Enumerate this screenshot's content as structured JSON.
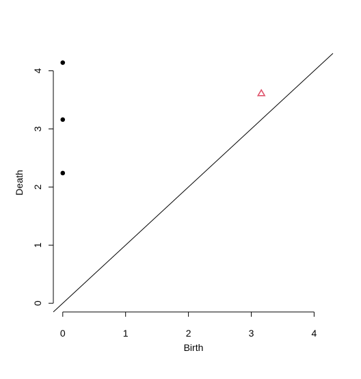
{
  "chart_data": {
    "type": "scatter",
    "title": "",
    "xlabel": "Birth",
    "ylabel": "Death",
    "xlim": [
      -0.15,
      4.3
    ],
    "ylim": [
      -0.15,
      4.3
    ],
    "x_ticks": [
      0,
      1,
      2,
      3,
      4
    ],
    "y_ticks": [
      0,
      1,
      2,
      3,
      4
    ],
    "grid": false,
    "legend": "none",
    "reference_line": {
      "from": [
        -0.15,
        -0.15
      ],
      "to": [
        4.3,
        4.3
      ],
      "color": "#000000"
    },
    "series": [
      {
        "marker": "filled-circle",
        "color": "#000000",
        "points": [
          {
            "x": 0,
            "y": 4.14
          },
          {
            "x": 0,
            "y": 3.16
          },
          {
            "x": 0,
            "y": 2.24
          }
        ]
      },
      {
        "marker": "open-triangle",
        "color": "#DF536B",
        "points": [
          {
            "x": 3.16,
            "y": 3.61
          }
        ]
      }
    ]
  }
}
